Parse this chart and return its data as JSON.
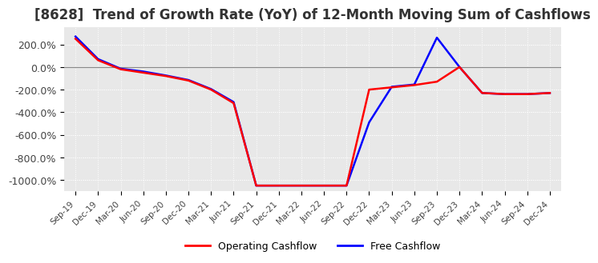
{
  "title": "[8628]  Trend of Growth Rate (YoY) of 12-Month Moving Sum of Cashflows",
  "title_fontsize": 12,
  "ylim": [
    -1100,
    350
  ],
  "yticks": [
    200,
    0,
    -200,
    -400,
    -600,
    -800,
    -1000
  ],
  "ytick_labels": [
    "200.0%",
    "0.0%",
    "-200.0%",
    "-400.0%",
    "-600.0%",
    "-800.0%",
    "-1000.0%"
  ],
  "background_color": "#ffffff",
  "plot_bg_color": "#e8e8e8",
  "grid_color": "#ffffff",
  "legend_labels": [
    "Operating Cashflow",
    "Free Cashflow"
  ],
  "legend_colors": [
    "#ff0000",
    "#0000ff"
  ],
  "x_labels": [
    "Sep-19",
    "Dec-19",
    "Mar-20",
    "Jun-20",
    "Sep-20",
    "Dec-20",
    "Mar-21",
    "Jun-21",
    "Sep-21",
    "Dec-21",
    "Mar-22",
    "Jun-22",
    "Sep-22",
    "Dec-22",
    "Mar-23",
    "Jun-23",
    "Sep-23",
    "Dec-23",
    "Mar-24",
    "Jun-24",
    "Sep-24",
    "Dec-24"
  ],
  "operating_cashflow": [
    250,
    60,
    -20,
    -50,
    -80,
    -120,
    -200,
    -320,
    -1050,
    -1050,
    -1050,
    -1050,
    -1050,
    -200,
    -180,
    -160,
    -130,
    0,
    -230,
    -240,
    -240,
    -230
  ],
  "free_cashflow": [
    270,
    70,
    -15,
    -40,
    -75,
    -115,
    -195,
    -310,
    -1050,
    -1050,
    -1050,
    -1050,
    -1050,
    -490,
    -175,
    -155,
    260,
    0,
    -230,
    -240,
    -240,
    -230
  ]
}
